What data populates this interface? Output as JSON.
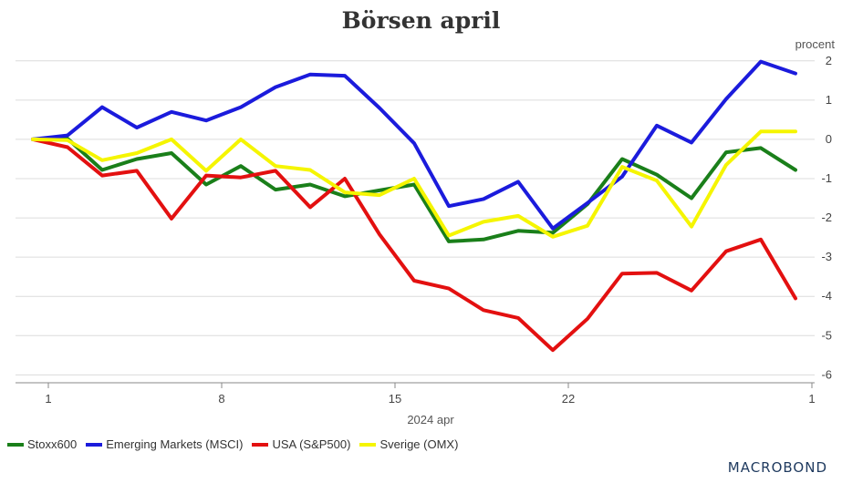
{
  "chart_data": {
    "type": "line",
    "title": "Börsen april",
    "ylabel": "procent",
    "xlabel": "2024 apr",
    "ylim": [
      -6.2,
      2.25
    ],
    "yticks": [
      2,
      1,
      0,
      -1,
      -2,
      -3,
      -4,
      -5,
      -6
    ],
    "xticks": [
      {
        "label": "1",
        "index": 0
      },
      {
        "label": "8",
        "index": 5
      },
      {
        "label": "15",
        "index": 10
      },
      {
        "label": "22",
        "index": 15
      },
      {
        "label": "1",
        "index": 22
      }
    ],
    "grid": true,
    "legend_position": "bottom-left",
    "series": [
      {
        "name": "Stoxx600",
        "color": "#1a7f1a",
        "values": [
          0,
          0.02,
          -0.78,
          -0.5,
          -0.35,
          -1.15,
          -0.68,
          -1.28,
          -1.15,
          -1.45,
          -1.3,
          -1.15,
          -2.6,
          -2.55,
          -2.33,
          -2.38,
          -1.65,
          -0.5,
          -0.9,
          -1.5,
          -0.33,
          -0.22,
          -0.78
        ]
      },
      {
        "name": "Emerging Markets (MSCI)",
        "color": "#1b1bdc",
        "values": [
          0,
          0.1,
          0.82,
          0.3,
          0.7,
          0.48,
          0.82,
          1.33,
          1.65,
          1.62,
          0.8,
          -0.1,
          -1.7,
          -1.52,
          -1.08,
          -2.27,
          -1.62,
          -0.95,
          0.35,
          -0.08,
          1.03,
          1.98,
          1.68
        ]
      },
      {
        "name": "USA (S&P500)",
        "color": "#e31010",
        "values": [
          0,
          -0.2,
          -0.92,
          -0.8,
          -2.02,
          -0.92,
          -0.97,
          -0.8,
          -1.73,
          -1.0,
          -2.42,
          -3.6,
          -3.8,
          -4.35,
          -4.55,
          -5.37,
          -4.57,
          -3.42,
          -3.4,
          -3.85,
          -2.85,
          -2.55,
          -4.05
        ]
      },
      {
        "name": "Sverige (OMX)",
        "color": "#f5f500",
        "values": [
          0,
          -0.02,
          -0.53,
          -0.35,
          0,
          -0.8,
          0,
          -0.68,
          -0.78,
          -1.35,
          -1.42,
          -1.0,
          -2.45,
          -2.1,
          -1.95,
          -2.48,
          -2.2,
          -0.7,
          -1.05,
          -2.22,
          -0.65,
          0.2,
          0.2
        ]
      }
    ]
  },
  "branding": {
    "logo_text": "MACROBOND"
  }
}
